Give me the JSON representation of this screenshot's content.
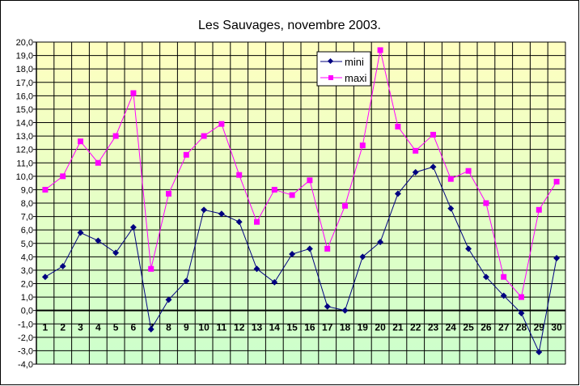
{
  "chart_data": {
    "type": "line",
    "title": "Les Sauvages, novembre 2003.",
    "xlabel": "",
    "ylabel": "",
    "categories": [
      "1",
      "2",
      "3",
      "4",
      "5",
      "6",
      "7",
      "8",
      "9",
      "10",
      "11",
      "12",
      "13",
      "14",
      "15",
      "16",
      "17",
      "18",
      "19",
      "20",
      "21",
      "22",
      "23",
      "24",
      "25",
      "26",
      "27",
      "28",
      "29",
      "30"
    ],
    "ylim": [
      -4,
      20
    ],
    "ytick_step": 1,
    "yticks": [
      "-4,0",
      "-3,0",
      "-2,0",
      "-1,0",
      "0,0",
      "1,0",
      "2,0",
      "3,0",
      "4,0",
      "5,0",
      "6,0",
      "7,0",
      "8,0",
      "9,0",
      "10,0",
      "11,0",
      "12,0",
      "13,0",
      "14,0",
      "15,0",
      "16,0",
      "17,0",
      "18,0",
      "19,0",
      "20,0"
    ],
    "grid": true,
    "legend_position": "top-center",
    "series": [
      {
        "name": "mini",
        "color": "#000080",
        "marker": "diamond",
        "values": [
          2.5,
          3.3,
          5.8,
          5.2,
          4.3,
          6.2,
          -1.4,
          0.8,
          2.2,
          7.5,
          7.2,
          6.6,
          3.1,
          2.1,
          4.2,
          4.6,
          0.3,
          0.0,
          4.0,
          5.1,
          8.7,
          10.3,
          10.7,
          7.6,
          4.6,
          2.5,
          1.1,
          -0.2,
          -3.1,
          3.9
        ]
      },
      {
        "name": "maxi",
        "color": "#ff00ff",
        "marker": "square",
        "values": [
          9.0,
          10.0,
          12.6,
          11.0,
          13.0,
          16.2,
          3.1,
          8.7,
          11.6,
          13.0,
          13.9,
          10.1,
          6.6,
          9.0,
          8.6,
          9.7,
          4.6,
          7.8,
          12.3,
          19.4,
          13.7,
          11.9,
          13.1,
          9.8,
          10.4,
          8.0,
          2.5,
          1.0,
          7.5,
          9.6
        ]
      }
    ]
  }
}
